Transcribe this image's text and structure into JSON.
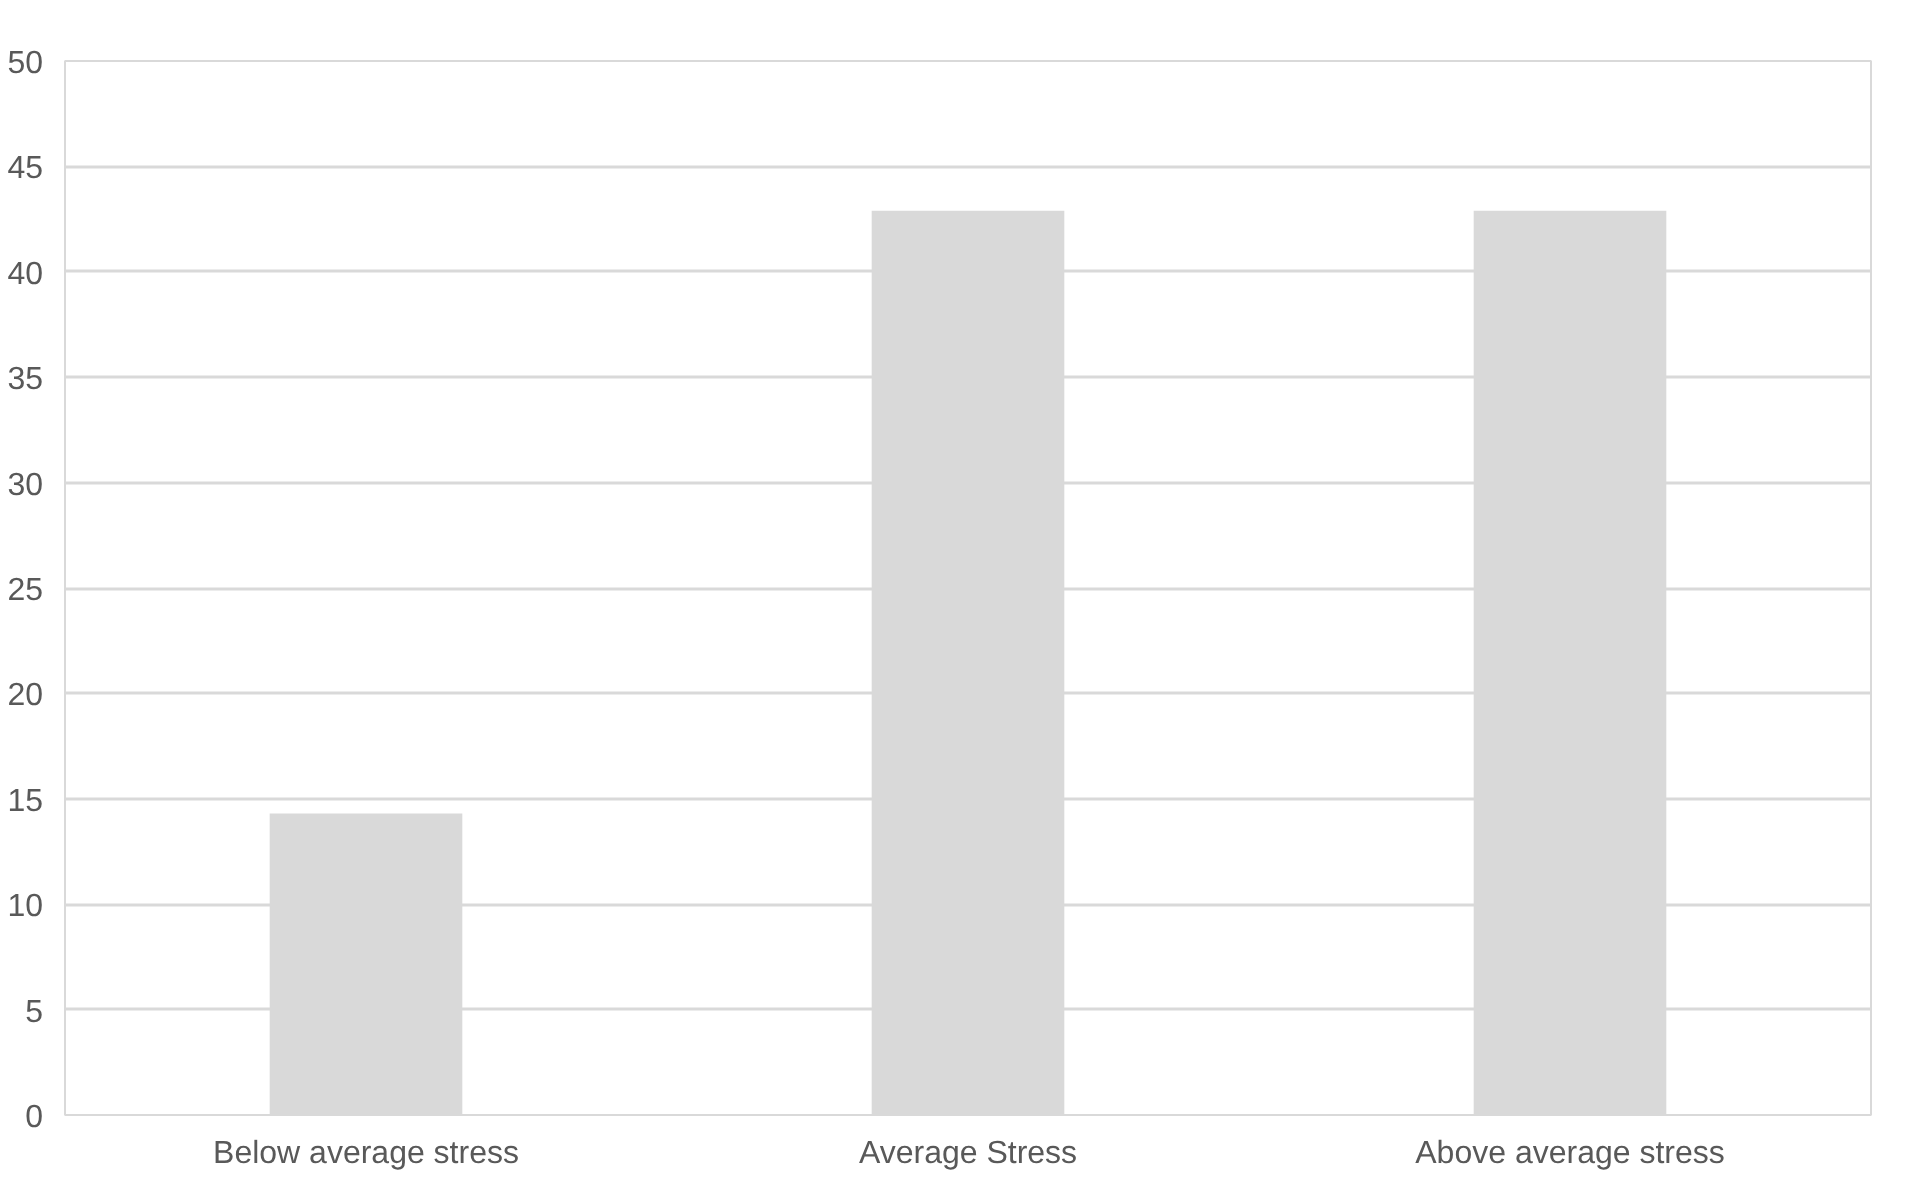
{
  "chart_data": {
    "type": "bar",
    "categories": [
      "Below average stress",
      "Average Stress",
      "Above average stress"
    ],
    "values": [
      14.3,
      42.9,
      42.9
    ],
    "color": "#d9d9d9",
    "ylim": [
      0,
      50
    ],
    "yticks": [
      0,
      5,
      10,
      15,
      20,
      25,
      30,
      35,
      40,
      45,
      50
    ],
    "grid": "y"
  }
}
